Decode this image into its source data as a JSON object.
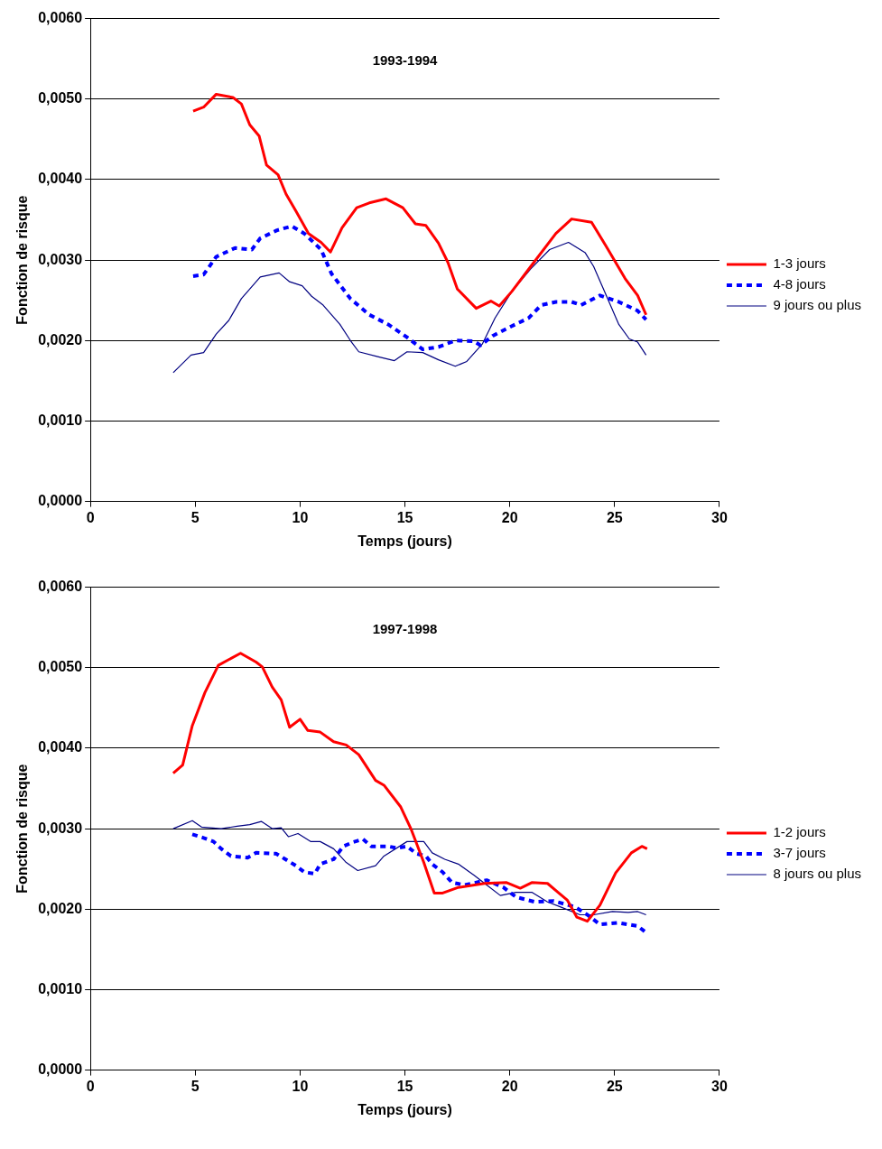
{
  "chart_data": [
    {
      "type": "line",
      "title": "1993-1994",
      "xlabel": "Temps (jours)",
      "ylabel": "Fonction de risque",
      "xlim": [
        0,
        30
      ],
      "xticks": [
        0,
        5,
        10,
        15,
        20,
        25,
        30
      ],
      "ylim": [
        0,
        0.006
      ],
      "yticks": [
        {
          "value": 0,
          "label": "0,0000"
        },
        {
          "value": 0.001,
          "label": "0,0010"
        },
        {
          "value": 0.002,
          "label": "0,0020"
        },
        {
          "value": 0.003,
          "label": "0,0030"
        },
        {
          "value": 0.004,
          "label": "0,0040"
        },
        {
          "value": 0.005,
          "label": "0,0050"
        },
        {
          "value": 0.006,
          "label": "0,0060"
        }
      ],
      "grid": "y",
      "legend": "right",
      "marker": "none",
      "series": [
        {
          "name": "1-3 jours",
          "color": "#ff0000",
          "line_style": "solid",
          "x": [
            4.9,
            5.4,
            6.0,
            6.8,
            7.2,
            7.6,
            8.05,
            8.4,
            8.95,
            9.33,
            9.8,
            10.4,
            11.0,
            11.45,
            12.0,
            12.7,
            13.3,
            14.1,
            14.9,
            15.5,
            16.0,
            16.6,
            17.05,
            17.5,
            18.4,
            19.1,
            19.5,
            20.1,
            21.0,
            22.2,
            22.95,
            23.9,
            24.6,
            25.5,
            26.1,
            26.5
          ],
          "values": [
            0.00485,
            0.0049,
            0.00506,
            0.00502,
            0.00494,
            0.00468,
            0.00454,
            0.00418,
            0.00406,
            0.00382,
            0.00361,
            0.00333,
            0.00322,
            0.0031,
            0.0034,
            0.00365,
            0.00371,
            0.00376,
            0.00365,
            0.00345,
            0.00343,
            0.00321,
            0.00297,
            0.00264,
            0.0024,
            0.00249,
            0.00243,
            0.00261,
            0.00292,
            0.00333,
            0.00351,
            0.00347,
            0.00317,
            0.00277,
            0.00256,
            0.00232
          ]
        },
        {
          "name": "4-8 jours",
          "color": "#0000ff",
          "line_style": "dashed",
          "x": [
            4.9,
            5.4,
            6.0,
            6.9,
            7.7,
            8.1,
            8.9,
            9.6,
            10.2,
            11.0,
            11.5,
            12.4,
            13.3,
            14.2,
            15.1,
            15.85,
            16.6,
            17.4,
            18.3,
            18.6,
            19.2,
            20.1,
            20.9,
            21.5,
            22.2,
            22.95,
            23.4,
            24.3,
            25.2,
            26.1,
            26.5
          ],
          "values": [
            0.0028,
            0.00282,
            0.00304,
            0.00315,
            0.00313,
            0.00327,
            0.00337,
            0.00342,
            0.00333,
            0.00313,
            0.00283,
            0.00252,
            0.00232,
            0.0022,
            0.00204,
            0.00189,
            0.00192,
            0.002,
            0.00199,
            0.00194,
            0.00206,
            0.00218,
            0.00228,
            0.00244,
            0.00248,
            0.00248,
            0.00244,
            0.00256,
            0.00248,
            0.00237,
            0.00226
          ]
        },
        {
          "name": "9 jours ou plus",
          "color": "#000080",
          "line_style": "solid",
          "x": [
            3.95,
            4.8,
            5.4,
            6.0,
            6.6,
            7.2,
            8.1,
            9.0,
            9.5,
            10.1,
            10.55,
            11.1,
            11.9,
            12.4,
            12.8,
            13.7,
            14.5,
            15.1,
            15.85,
            16.6,
            17.4,
            17.95,
            18.7,
            19.3,
            20.1,
            21.0,
            21.9,
            22.8,
            23.6,
            24.0,
            24.6,
            25.2,
            25.7,
            26.1,
            26.5
          ],
          "values": [
            0.0016,
            0.00182,
            0.00185,
            0.00208,
            0.00225,
            0.00252,
            0.00279,
            0.00284,
            0.00273,
            0.00268,
            0.00255,
            0.00244,
            0.0022,
            0.002,
            0.00186,
            0.0018,
            0.00175,
            0.00186,
            0.00185,
            0.00176,
            0.00168,
            0.00174,
            0.00196,
            0.00228,
            0.00261,
            0.00289,
            0.00313,
            0.00322,
            0.00309,
            0.00292,
            0.00256,
            0.0022,
            0.00202,
            0.00198,
            0.00182
          ]
        }
      ]
    },
    {
      "type": "line",
      "title": "1997-1998",
      "xlabel": "Temps (jours)",
      "ylabel": "Fonction de risque",
      "xlim": [
        0,
        30
      ],
      "xticks": [
        0,
        5,
        10,
        15,
        20,
        25,
        30
      ],
      "ylim": [
        0,
        0.006
      ],
      "yticks": [
        {
          "value": 0,
          "label": "0,0000"
        },
        {
          "value": 0.001,
          "label": "0,0010"
        },
        {
          "value": 0.002,
          "label": "0,0020"
        },
        {
          "value": 0.003,
          "label": "0,0030"
        },
        {
          "value": 0.004,
          "label": "0,0040"
        },
        {
          "value": 0.005,
          "label": "0,0050"
        },
        {
          "value": 0.006,
          "label": "0,0060"
        }
      ],
      "grid": "y",
      "legend": "right",
      "marker": "none",
      "series": [
        {
          "name": "1-2 jours",
          "color": "#ff0000",
          "line_style": "solid",
          "x": [
            3.95,
            4.4,
            4.86,
            5.46,
            6.1,
            7.16,
            7.9,
            8.2,
            8.67,
            9.1,
            9.5,
            10.0,
            10.37,
            10.96,
            11.6,
            12.2,
            12.8,
            13.6,
            14.0,
            14.8,
            15.3,
            15.9,
            16.4,
            16.8,
            17.55,
            18.8,
            19.85,
            20.5,
            21.05,
            21.8,
            22.3,
            22.75,
            23.2,
            23.7,
            24.3,
            25.05,
            25.8,
            26.3,
            26.55
          ],
          "values": [
            0.00369,
            0.00379,
            0.00428,
            0.00469,
            0.00503,
            0.00518,
            0.00507,
            0.00501,
            0.00476,
            0.0046,
            0.00426,
            0.00436,
            0.00422,
            0.0042,
            0.00408,
            0.00404,
            0.00392,
            0.0036,
            0.00354,
            0.00327,
            0.00299,
            0.00258,
            0.0022,
            0.0022,
            0.00227,
            0.00232,
            0.00233,
            0.00226,
            0.00233,
            0.00232,
            0.00221,
            0.00211,
            0.0019,
            0.00185,
            0.00205,
            0.00245,
            0.0027,
            0.00278,
            0.00275
          ]
        },
        {
          "name": "3-7 jours",
          "color": "#0000ff",
          "line_style": "dashed",
          "x": [
            4.86,
            5.46,
            5.87,
            6.24,
            6.7,
            7.5,
            7.9,
            8.85,
            9.3,
            9.8,
            10.2,
            10.7,
            10.96,
            11.6,
            12.06,
            12.5,
            13.0,
            13.4,
            14.2,
            14.6,
            15.1,
            15.55,
            16.0,
            16.3,
            16.8,
            17.25,
            17.85,
            18.9,
            19.7,
            20.3,
            21.2,
            22.1,
            23.1,
            23.7,
            24.3,
            25.2,
            26.1,
            26.5
          ],
          "values": [
            0.00293,
            0.00288,
            0.00284,
            0.00275,
            0.00266,
            0.00264,
            0.0027,
            0.00269,
            0.00262,
            0.00254,
            0.00246,
            0.00244,
            0.00256,
            0.00262,
            0.00278,
            0.00283,
            0.00287,
            0.00278,
            0.00278,
            0.00276,
            0.00278,
            0.00269,
            0.00266,
            0.00256,
            0.00246,
            0.00233,
            0.0023,
            0.00236,
            0.00227,
            0.00215,
            0.00209,
            0.0021,
            0.00203,
            0.00193,
            0.00181,
            0.00183,
            0.00179,
            0.00171
          ]
        },
        {
          "name": "8 jours ou plus",
          "color": "#000080",
          "line_style": "solid",
          "x": [
            3.95,
            4.86,
            5.3,
            6.24,
            7.0,
            7.6,
            8.15,
            8.67,
            9.1,
            9.45,
            9.9,
            10.5,
            10.96,
            11.6,
            12.2,
            12.75,
            13.6,
            14.0,
            15.1,
            15.9,
            16.3,
            16.9,
            17.55,
            18.3,
            18.9,
            19.55,
            20.3,
            21.05,
            21.8,
            22.4,
            23.35,
            24.0,
            24.9,
            25.65,
            26.1,
            26.5
          ],
          "values": [
            0.003,
            0.0031,
            0.00302,
            0.003,
            0.00303,
            0.00305,
            0.00309,
            0.003,
            0.00301,
            0.0029,
            0.00294,
            0.00284,
            0.00284,
            0.00275,
            0.00258,
            0.00248,
            0.00254,
            0.00266,
            0.00284,
            0.00284,
            0.0027,
            0.00262,
            0.00256,
            0.00242,
            0.0023,
            0.00217,
            0.00221,
            0.00221,
            0.00209,
            0.00203,
            0.00193,
            0.00193,
            0.00197,
            0.00196,
            0.00197,
            0.00193
          ]
        }
      ]
    }
  ]
}
